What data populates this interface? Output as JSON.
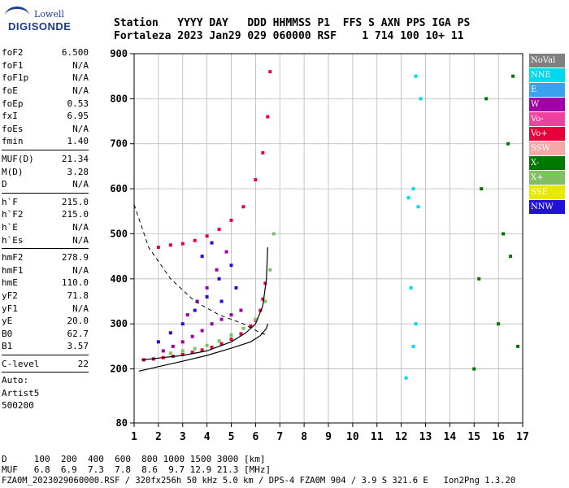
{
  "logo": {
    "line1": "Lowell",
    "line2": "DIGISONDE"
  },
  "header": {
    "row1": "Station   YYYY DAY   DDD HHMMSS P1  FFS S AXN PPS IGA PS",
    "row2": "Fortaleza 2023 Jan29 029 060000 RSF    1 714 100 10+ 11"
  },
  "params_groups": [
    [
      {
        "name": "foF2",
        "value": "6.500"
      },
      {
        "name": "foF1",
        "value": "N/A"
      },
      {
        "name": "foF1p",
        "value": "N/A"
      },
      {
        "name": "foE",
        "value": "N/A"
      },
      {
        "name": "foEp",
        "value": "0.53"
      },
      {
        "name": "fxI",
        "value": "6.95"
      },
      {
        "name": "foEs",
        "value": "N/A"
      },
      {
        "name": "fmin",
        "value": "1.40"
      }
    ],
    [
      {
        "name": "MUF(D)",
        "value": "21.34"
      },
      {
        "name": "M(D)",
        "value": "3.28"
      },
      {
        "name": "D",
        "value": "N/A"
      }
    ],
    [
      {
        "name": "h`F",
        "value": "215.0"
      },
      {
        "name": "h`F2",
        "value": "215.0"
      },
      {
        "name": "h`E",
        "value": "N/A"
      },
      {
        "name": "h`Es",
        "value": "N/A"
      }
    ],
    [
      {
        "name": "hmF2",
        "value": "278.9"
      },
      {
        "name": "hmF1",
        "value": "N/A"
      },
      {
        "name": "hmE",
        "value": "110.0"
      },
      {
        "name": "yF2",
        "value": "71.8"
      },
      {
        "name": "yF1",
        "value": "N/A"
      },
      {
        "name": "yE",
        "value": "20.0"
      },
      {
        "name": "B0",
        "value": "62.7"
      },
      {
        "name": "B1",
        "value": "3.57"
      }
    ],
    [
      {
        "name": "C-level",
        "value": "22"
      }
    ]
  ],
  "autoscale": {
    "line1": "Auto:",
    "line2": "Artist5",
    "line3": "500200"
  },
  "legend": [
    {
      "label": "NoVal",
      "color": "#808080"
    },
    {
      "label": "NNE",
      "color": "#00d8f0"
    },
    {
      "label": "E",
      "color": "#3aa0f0"
    },
    {
      "label": "W",
      "color": "#a000a8"
    },
    {
      "label": "Vo-",
      "color": "#f040a0"
    },
    {
      "label": "Vo+",
      "color": "#e8003a"
    },
    {
      "label": "SSW",
      "color": "#f4a8a8"
    },
    {
      "label": "X-",
      "color": "#007800"
    },
    {
      "label": "X+",
      "color": "#80c060"
    },
    {
      "label": "SSE",
      "color": "#e8e800"
    },
    {
      "label": "NNW",
      "color": "#2010d8"
    }
  ],
  "bottom": {
    "line1": "D     100  200  400  600  800 1000 1500 3000 [km]",
    "line2": "MUF   6.8  6.9  7.3  7.8  8.6  9.7 12.9 21.3 [MHz]",
    "line3": "FZA0M_2023029060000.RSF / 320fx256h 50 kHz 5.0 km / DPS-4 FZA0M 904 / 3.9 S 321.6 E   Ion2Png 1.3.20"
  },
  "chart_data": {
    "type": "scatter",
    "xlim": [
      1,
      17
    ],
    "ylim": [
      80,
      900
    ],
    "x_ticks": [
      1,
      2,
      3,
      4,
      5,
      6,
      7,
      8,
      9,
      10,
      11,
      12,
      13,
      14,
      15,
      16,
      17
    ],
    "y_ticks": [
      80,
      200,
      300,
      400,
      500,
      600,
      700,
      800,
      900
    ],
    "grid": true,
    "legend_position": "right",
    "profile_curve": [
      [
        1.2,
        195
      ],
      [
        2,
        205
      ],
      [
        3,
        217
      ],
      [
        4,
        230
      ],
      [
        5,
        246
      ],
      [
        5.8,
        260
      ],
      [
        6.2,
        274
      ],
      [
        6.45,
        290
      ],
      [
        6.5,
        300
      ]
    ],
    "trace_curve": [
      [
        1.3,
        220
      ],
      [
        2,
        224
      ],
      [
        3,
        230
      ],
      [
        4,
        240
      ],
      [
        5,
        260
      ],
      [
        5.6,
        280
      ],
      [
        6.0,
        300
      ],
      [
        6.3,
        340
      ],
      [
        6.45,
        400
      ],
      [
        6.5,
        470
      ]
    ],
    "dashed_curve": [
      [
        1,
        565
      ],
      [
        1.6,
        470
      ],
      [
        2.5,
        400
      ],
      [
        3.5,
        350
      ],
      [
        4.5,
        320
      ],
      [
        5.5,
        300
      ],
      [
        6.2,
        280
      ],
      [
        6.5,
        275
      ]
    ],
    "clusters": [
      {
        "name": "O-trace F2",
        "color_key": "Vo+",
        "points": [
          [
            1.4,
            220
          ],
          [
            1.8,
            222
          ],
          [
            2.2,
            225
          ],
          [
            2.6,
            228
          ],
          [
            3.0,
            232
          ],
          [
            3.4,
            237
          ],
          [
            3.8,
            242
          ],
          [
            4.2,
            248
          ],
          [
            4.6,
            256
          ],
          [
            5.0,
            266
          ],
          [
            5.4,
            278
          ],
          [
            5.8,
            295
          ],
          [
            6.0,
            308
          ],
          [
            6.2,
            330
          ],
          [
            6.3,
            355
          ],
          [
            6.4,
            390
          ]
        ]
      },
      {
        "name": "spread W",
        "color_key": "W",
        "points": [
          [
            2.2,
            240
          ],
          [
            2.6,
            250
          ],
          [
            3.0,
            260
          ],
          [
            3.4,
            272
          ],
          [
            3.8,
            285
          ],
          [
            4.2,
            300
          ],
          [
            4.6,
            310
          ],
          [
            5.0,
            320
          ],
          [
            5.4,
            330
          ],
          [
            4.0,
            380
          ],
          [
            4.4,
            420
          ],
          [
            4.8,
            460
          ],
          [
            3.6,
            350
          ],
          [
            3.2,
            320
          ]
        ]
      },
      {
        "name": "spread NNW",
        "color_key": "NNW",
        "points": [
          [
            2.0,
            260
          ],
          [
            2.5,
            280
          ],
          [
            3.0,
            300
          ],
          [
            3.5,
            330
          ],
          [
            4.0,
            360
          ],
          [
            4.5,
            400
          ],
          [
            5.0,
            430
          ],
          [
            4.2,
            480
          ],
          [
            3.8,
            450
          ],
          [
            4.6,
            350
          ],
          [
            5.2,
            380
          ]
        ]
      },
      {
        "name": "multi-hop",
        "color_key": "Vo+",
        "points": [
          [
            2.0,
            470
          ],
          [
            2.5,
            475
          ],
          [
            3.0,
            478
          ],
          [
            3.5,
            485
          ],
          [
            4.0,
            495
          ],
          [
            4.5,
            510
          ],
          [
            5.0,
            530
          ],
          [
            5.5,
            560
          ],
          [
            6.0,
            620
          ],
          [
            6.3,
            680
          ],
          [
            6.5,
            760
          ],
          [
            6.6,
            860
          ]
        ]
      },
      {
        "name": "x-trace",
        "color_key": "X+",
        "points": [
          [
            2.5,
            235
          ],
          [
            3.0,
            240
          ],
          [
            3.5,
            245
          ],
          [
            4.0,
            252
          ],
          [
            4.5,
            262
          ],
          [
            5.0,
            275
          ],
          [
            5.5,
            290
          ],
          [
            6.0,
            310
          ],
          [
            6.4,
            350
          ],
          [
            6.6,
            420
          ],
          [
            6.75,
            500
          ]
        ]
      },
      {
        "name": "interference 12-13",
        "color_key": "NNE",
        "points": [
          [
            12.3,
            580
          ],
          [
            12.5,
            600
          ],
          [
            12.7,
            560
          ],
          [
            12.4,
            380
          ],
          [
            12.6,
            300
          ],
          [
            12.5,
            250
          ],
          [
            12.2,
            180
          ],
          [
            12.8,
            800
          ],
          [
            12.6,
            850
          ]
        ]
      },
      {
        "name": "interference 15-17",
        "color_key": "X-",
        "points": [
          [
            15.0,
            200
          ],
          [
            15.2,
            400
          ],
          [
            15.3,
            600
          ],
          [
            15.5,
            800
          ],
          [
            16.0,
            300
          ],
          [
            16.2,
            500
          ],
          [
            16.4,
            700
          ],
          [
            16.6,
            850
          ],
          [
            16.8,
            250
          ],
          [
            16.5,
            450
          ]
        ]
      }
    ]
  }
}
